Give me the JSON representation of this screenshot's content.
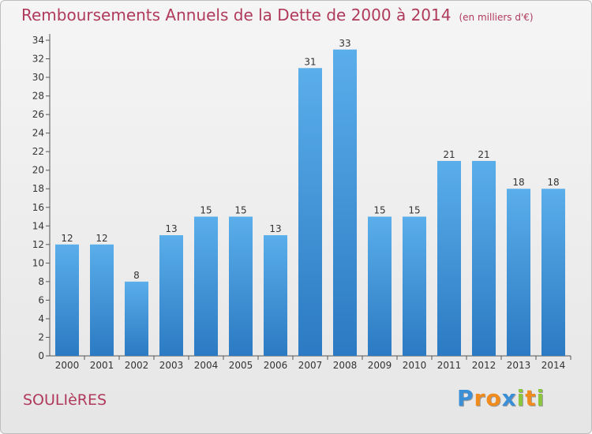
{
  "header": {
    "title": "Remboursements Annuels de la Dette de 2000 à 2014",
    "subtitle": "(en milliers d'€)"
  },
  "footer": {
    "commune": "SOULIèRES",
    "logo": "Proxiti",
    "logo_letters": [
      {
        "ch": "P",
        "color": "#3b8fd6"
      },
      {
        "ch": "r",
        "color": "#f08b1d"
      },
      {
        "ch": "o",
        "color": "#f08b1d"
      },
      {
        "ch": "x",
        "color": "#3b8fd6"
      },
      {
        "ch": "i",
        "color": "#8cc63f"
      },
      {
        "ch": "t",
        "color": "#f08b1d"
      },
      {
        "ch": "i",
        "color": "#8cc63f"
      }
    ]
  },
  "chart_data": {
    "type": "bar",
    "title": "Remboursements Annuels de la Dette de 2000 à 2014",
    "subtitle": "(en milliers d'€)",
    "categories": [
      "2000",
      "2001",
      "2002",
      "2003",
      "2004",
      "2005",
      "2006",
      "2007",
      "2008",
      "2009",
      "2010",
      "2011",
      "2012",
      "2013",
      "2014"
    ],
    "values": [
      12,
      12,
      8,
      13,
      15,
      15,
      13,
      31,
      33,
      15,
      15,
      21,
      21,
      18,
      18
    ],
    "yticks": [
      0,
      2,
      4,
      6,
      8,
      10,
      12,
      14,
      16,
      18,
      20,
      22,
      24,
      26,
      28,
      30,
      32,
      34
    ],
    "ylim": [
      0,
      34
    ],
    "grid": false,
    "bar_color_top": "#5aaeea",
    "bar_color_bottom": "#2b7ac3",
    "label_color": "#333333"
  }
}
